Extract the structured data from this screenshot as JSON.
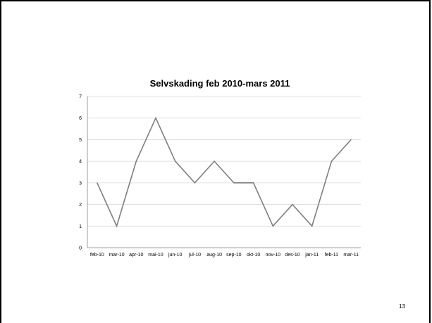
{
  "slide": {
    "page_number": "13"
  },
  "chart_data": {
    "type": "line",
    "title": "Selvskading feb 2010-mars 2011",
    "xlabel": "",
    "ylabel": "",
    "categories": [
      "feb-10",
      "mar-10",
      "apr-10",
      "mai-10",
      "jun-10",
      "jul-10",
      "aug-10",
      "sep-10",
      "okt-10",
      "nov-10",
      "des-10",
      "jan-11",
      "feb-11",
      "mar-11"
    ],
    "series": [
      {
        "values": [
          3,
          1,
          4,
          6,
          4,
          3,
          4,
          3,
          3,
          1,
          2,
          1,
          4,
          5
        ]
      }
    ],
    "ylim": [
      0,
      7
    ],
    "yticks": [
      0,
      1,
      2,
      3,
      4,
      5,
      6,
      7
    ],
    "grid": true,
    "legend": "none",
    "colors": {
      "line": "#7f7f7f",
      "grid": "#d9d9d9",
      "axis": "#868686"
    }
  }
}
